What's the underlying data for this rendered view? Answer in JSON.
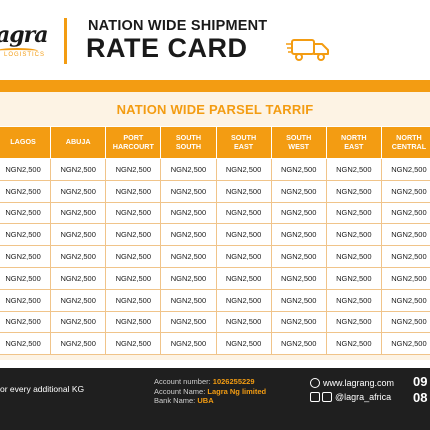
{
  "header": {
    "logo_text": "agra",
    "logo_sub": "LOGISTICS",
    "title_top": "NATION WIDE SHIPMENT",
    "title_main": "RATE CARD"
  },
  "tariff": {
    "title": "NATION WIDE PARSEL TARRIF",
    "columns": [
      [
        "LAGOS"
      ],
      [
        "ABUJA"
      ],
      [
        "PORT",
        "HARCOURT"
      ],
      [
        "SOUTH",
        "SOUTH"
      ],
      [
        "SOUTH",
        "EAST"
      ],
      [
        "SOUTH",
        "WEST"
      ],
      [
        "NORTH",
        "EAST"
      ],
      [
        "NORTH",
        "CENTRAL"
      ]
    ],
    "rows": [
      [
        "NGN2,500",
        "NGN2,500",
        "NGN2,500",
        "NGN2,500",
        "NGN2,500",
        "NGN2,500",
        "NGN2,500",
        "NGN2,500"
      ],
      [
        "NGN2,500",
        "NGN2,500",
        "NGN2,500",
        "NGN2,500",
        "NGN2,500",
        "NGN2,500",
        "NGN2,500",
        "NGN2,500"
      ],
      [
        "NGN2,500",
        "NGN2,500",
        "NGN2,500",
        "NGN2,500",
        "NGN2,500",
        "NGN2,500",
        "NGN2,500",
        "NGN2,500"
      ],
      [
        "NGN2,500",
        "NGN2,500",
        "NGN2,500",
        "NGN2,500",
        "NGN2,500",
        "NGN2,500",
        "NGN2,500",
        "NGN2,500"
      ],
      [
        "NGN2,500",
        "NGN2,500",
        "NGN2,500",
        "NGN2,500",
        "NGN2,500",
        "NGN2,500",
        "NGN2,500",
        "NGN2,500"
      ],
      [
        "NGN2,500",
        "NGN2,500",
        "NGN2,500",
        "NGN2,500",
        "NGN2,500",
        "NGN2,500",
        "NGN2,500",
        "NGN2,500"
      ],
      [
        "NGN2,500",
        "NGN2,500",
        "NGN2,500",
        "NGN2,500",
        "NGN2,500",
        "NGN2,500",
        "NGN2,500",
        "NGN2,500"
      ],
      [
        "NGN2,500",
        "NGN2,500",
        "NGN2,500",
        "NGN2,500",
        "NGN2,500",
        "NGN2,500",
        "NGN2,500",
        "NGN2,500"
      ],
      [
        "NGN2,500",
        "NGN2,500",
        "NGN2,500",
        "NGN2,500",
        "NGN2,500",
        "NGN2,500",
        "NGN2,500",
        "NGN2,500"
      ]
    ]
  },
  "footer": {
    "note": "or every additional KG",
    "account_number_label": "Account number:",
    "account_number": "1026255229",
    "account_name_label": "Account Name:",
    "account_name": "Lagra Ng limited",
    "bank_name_label": "Bank Name:",
    "bank_name": "UBA",
    "website": "www.lagrang.com",
    "social": "@lagra_africa",
    "phone_1": "09",
    "phone_2": "08"
  },
  "icons": [
    "globe-icon",
    "facebook-icon",
    "instagram-icon",
    "truck-icon"
  ],
  "colors": {
    "accent": "#f39c12",
    "dark": "#1f1f1f",
    "panel": "#fdf3e4"
  }
}
